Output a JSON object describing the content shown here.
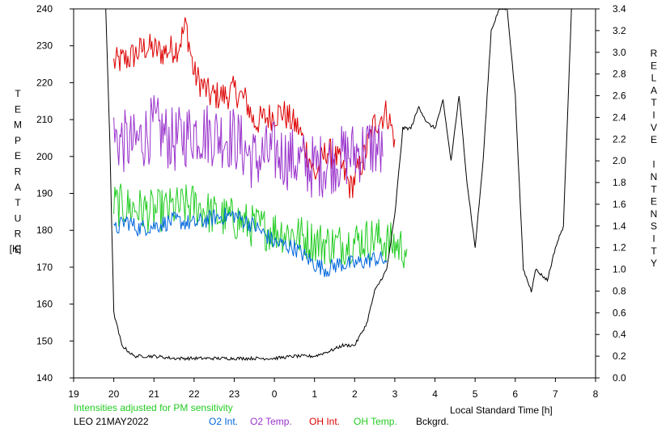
{
  "chart_data": {
    "type": "line",
    "left_axis": {
      "label": "TEMPERATURE",
      "unit": "[K]",
      "ticks": [
        "140",
        "150",
        "160",
        "170",
        "180",
        "190",
        "200",
        "210",
        "220",
        "230",
        "240"
      ],
      "ylim": [
        140,
        240
      ]
    },
    "right_axis": {
      "label": "RELATIVE INTENSITY",
      "ticks": [
        "0.0",
        "0.2",
        "0.4",
        "0.6",
        "0.8",
        "1.0",
        "1.2",
        "1.4",
        "1.6",
        "1.8",
        "2.0",
        "2.2",
        "2.4",
        "2.6",
        "2.8",
        "3.0",
        "3.2",
        "3.4"
      ],
      "ylim": [
        0.0,
        3.4
      ]
    },
    "x_axis": {
      "label": "Local Standard Time [h]",
      "ticks": [
        "19",
        "20",
        "21",
        "22",
        "23",
        "0",
        "1",
        "2",
        "3",
        "4",
        "5",
        "6",
        "7",
        "8"
      ],
      "xlim": [
        19,
        32
      ]
    },
    "note": "Intensities adjusted for PM sensitivity",
    "station": "LEO 21MAY2022",
    "legend": [
      {
        "name": "O2 Int.",
        "color": "#0066dd"
      },
      {
        "name": "O2 Temp.",
        "color": "#9933cc"
      },
      {
        "name": "OH Int.",
        "color": "#dd0000"
      },
      {
        "name": "OH Temp.",
        "color": "#22cc22"
      },
      {
        "name": "Bckgrd.",
        "color": "#000000"
      }
    ],
    "series": [
      {
        "name": "OH Int.",
        "axis": "right",
        "color": "#dd0000",
        "x": [
          20.0,
          20.4,
          20.8,
          21.2,
          21.6,
          21.8,
          22.0,
          22.4,
          22.8,
          23.0,
          23.3,
          23.5,
          23.8,
          24.2,
          24.6,
          24.9,
          25.0,
          25.3,
          25.6,
          25.9,
          26.2,
          26.5,
          26.8,
          27.0
        ],
        "y": [
          2.9,
          2.95,
          3.05,
          3.0,
          3.05,
          3.25,
          2.8,
          2.6,
          2.6,
          2.65,
          2.55,
          2.35,
          2.4,
          2.45,
          2.3,
          2.0,
          1.85,
          2.1,
          2.0,
          1.75,
          2.0,
          2.35,
          2.45,
          2.2
        ]
      },
      {
        "name": "O2 Temp.",
        "axis": "left",
        "color": "#9933cc",
        "x": [
          20.0,
          20.5,
          21.0,
          21.5,
          22.0,
          22.5,
          23.0,
          23.5,
          24.0,
          24.5,
          25.0,
          25.5,
          26.0,
          26.5,
          26.7
        ],
        "y": [
          205,
          203,
          208,
          204,
          207,
          206,
          205,
          199,
          201,
          199,
          197,
          199,
          201,
          203,
          200
        ]
      },
      {
        "name": "OH Temp.",
        "axis": "left",
        "color": "#22cc22",
        "x": [
          20.0,
          20.5,
          21.0,
          21.5,
          22.0,
          22.5,
          23.0,
          23.5,
          24.0,
          24.5,
          25.0,
          25.5,
          26.0,
          26.5,
          27.0,
          27.3
        ],
        "y": [
          187,
          186,
          185,
          186,
          187,
          184,
          183,
          181,
          180,
          179,
          177,
          176,
          177,
          178,
          176,
          175
        ]
      },
      {
        "name": "O2 Int.",
        "axis": "right",
        "color": "#0066dd",
        "x": [
          20.0,
          20.3,
          20.6,
          21.0,
          21.5,
          22.0,
          22.5,
          23.0,
          23.5,
          24.0,
          24.5,
          25.0,
          25.3,
          25.6,
          26.0,
          26.5,
          26.8
        ],
        "y": [
          1.35,
          1.45,
          1.38,
          1.4,
          1.45,
          1.42,
          1.48,
          1.5,
          1.4,
          1.25,
          1.2,
          1.05,
          1.0,
          1.05,
          1.05,
          1.1,
          1.08
        ]
      },
      {
        "name": "Bckgrd.",
        "axis": "right",
        "color": "#000000",
        "x": [
          19.8,
          19.9,
          20.0,
          20.2,
          20.5,
          21.0,
          21.5,
          22.0,
          22.5,
          23.0,
          23.5,
          24.0,
          24.5,
          25.0,
          25.4,
          25.7,
          26.0,
          26.3,
          26.5,
          26.8,
          27.0,
          27.2,
          27.4,
          27.6,
          27.8,
          28.0,
          28.2,
          28.4,
          28.6,
          28.8,
          29.0,
          29.2,
          29.4,
          29.6,
          29.8,
          30.0,
          30.2,
          30.4,
          30.5,
          30.8,
          31.0,
          31.2,
          31.4
        ],
        "y": [
          3.4,
          2.2,
          0.6,
          0.3,
          0.2,
          0.2,
          0.18,
          0.18,
          0.18,
          0.18,
          0.18,
          0.18,
          0.2,
          0.2,
          0.25,
          0.3,
          0.3,
          0.5,
          0.8,
          1.0,
          1.5,
          2.3,
          2.3,
          2.5,
          2.35,
          2.3,
          2.55,
          2.0,
          2.6,
          1.8,
          1.2,
          2.0,
          3.2,
          3.4,
          3.4,
          2.6,
          1.0,
          0.8,
          1.0,
          0.9,
          1.2,
          1.4,
          3.4
        ]
      }
    ]
  }
}
